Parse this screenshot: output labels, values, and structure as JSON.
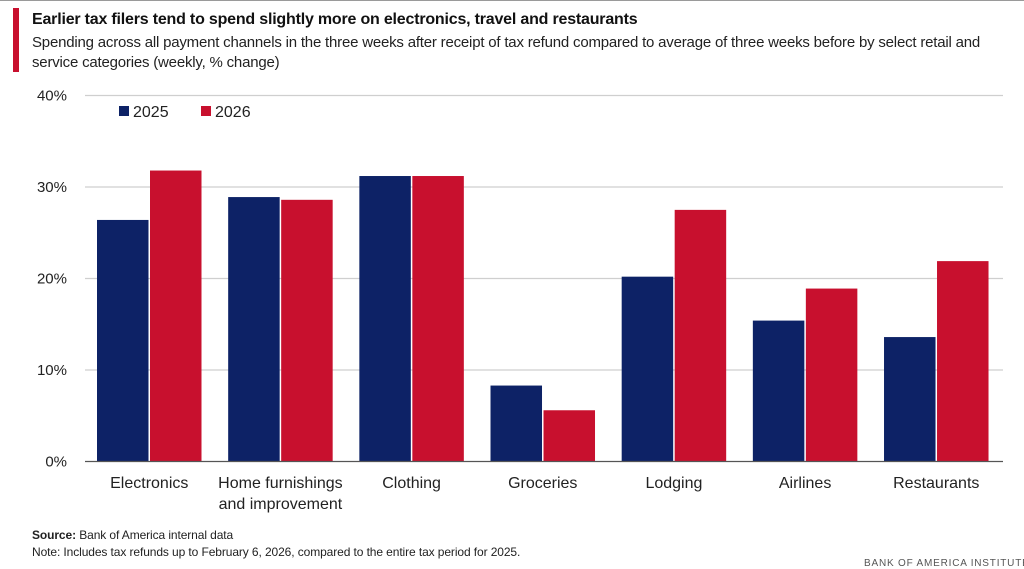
{
  "chart_data": {
    "type": "bar",
    "title": "Earlier tax filers tend to spend slightly more on electronics, travel and restaurants",
    "subtitle": "Spending across all payment channels in the three weeks after receipt of tax refund compared to average of three weeks before by select retail and service categories (weekly, % change)",
    "categories": [
      [
        "Electronics"
      ],
      [
        "Home furnishings",
        "and improvement"
      ],
      [
        "Clothing"
      ],
      [
        "Groceries"
      ],
      [
        "Lodging"
      ],
      [
        "Airlines"
      ],
      [
        "Restaurants"
      ]
    ],
    "series": [
      {
        "name": "2025",
        "color": "#0d2266",
        "values": [
          26.4,
          28.9,
          31.2,
          8.3,
          20.2,
          15.4,
          13.6
        ]
      },
      {
        "name": "2026",
        "color": "#c8102e",
        "values": [
          31.8,
          28.6,
          31.2,
          5.6,
          27.5,
          18.9,
          21.9
        ]
      }
    ],
    "ylim": [
      0,
      40
    ],
    "yticks": [
      "0%",
      "10%",
      "20%",
      "30%",
      "40%"
    ],
    "xlabel": "",
    "ylabel": "",
    "grid": true,
    "legend_position": "top-left"
  },
  "source_label": "Source:",
  "source_text": "Bank of America internal data",
  "note_text": "Note: Includes tax refunds up to February 6, 2026, compared to the entire tax period for 2025.",
  "brand": "BANK OF AMERICA INSTITUTE"
}
